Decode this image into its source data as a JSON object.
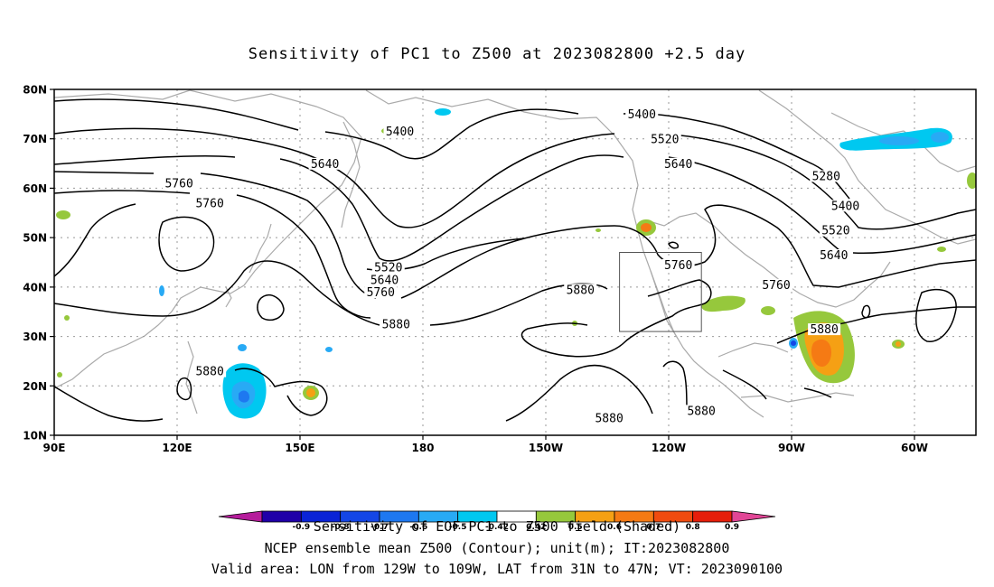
{
  "title": "Sensitivity of PC1 to Z500 at 2023082800 +2.5 day",
  "lat_labels": [
    "80N",
    "70N",
    "60N",
    "50N",
    "40N",
    "30N",
    "20N",
    "10N"
  ],
  "lon_labels": [
    "90E",
    "120E",
    "150E",
    "180",
    "150W",
    "120W",
    "90W",
    "60W"
  ],
  "contour_labels": [
    {
      "text": "5400",
      "lon": 180.0,
      "lat": 71.0
    },
    {
      "text": "5400",
      "lon": 243.0,
      "lat": 74.5
    },
    {
      "text": "5520",
      "lon": 249.0,
      "lat": 69.5
    },
    {
      "text": "5640",
      "lon": 160.5,
      "lat": 64.5
    },
    {
      "text": "5640",
      "lon": 252.5,
      "lat": 64.5
    },
    {
      "text": "5760",
      "lon": 122.5,
      "lat": 60.5
    },
    {
      "text": "5760",
      "lon": 130.5,
      "lat": 56.5
    },
    {
      "text": "5280",
      "lon": 291.0,
      "lat": 62.0
    },
    {
      "text": "5400",
      "lon": 296.0,
      "lat": 56.0
    },
    {
      "text": "5520",
      "lon": 293.5,
      "lat": 51.0
    },
    {
      "text": "5640",
      "lon": 293.0,
      "lat": 46.0
    },
    {
      "text": "5760",
      "lon": 278.0,
      "lat": 40.0
    },
    {
      "text": "5520",
      "lon": 177.0,
      "lat": 43.5
    },
    {
      "text": "5640",
      "lon": 176.0,
      "lat": 41.0
    },
    {
      "text": "5760",
      "lon": 175.0,
      "lat": 38.5
    },
    {
      "text": "5880",
      "lon": 179.0,
      "lat": 32.0
    },
    {
      "text": "5760",
      "lon": 252.5,
      "lat": 44.0
    },
    {
      "text": "5880",
      "lon": 227.0,
      "lat": 39.0
    },
    {
      "text": "5880",
      "lon": 290.5,
      "lat": 31.0
    },
    {
      "text": "5880",
      "lon": 130.5,
      "lat": 22.5
    },
    {
      "text": "5880",
      "lon": 258.5,
      "lat": 14.5
    },
    {
      "text": "5880",
      "lon": 234.5,
      "lat": 13.0
    }
  ],
  "colorbar": {
    "tick_labels": [
      "-0.9",
      "-0.8",
      "-0.7",
      "-0.6",
      "-0.5",
      "-0.42",
      "0.42",
      "0.5",
      "0.6",
      "0.7",
      "0.8",
      "0.9"
    ],
    "colors": [
      "#b51c9b",
      "#1f00a8",
      "#0a23d6",
      "#1446e6",
      "#1e78f0",
      "#28aaf5",
      "#00c8f0",
      "#ffffff",
      "#96c83c",
      "#f5a014",
      "#f57a14",
      "#f04b0f",
      "#e61e0a",
      "#e14696"
    ]
  },
  "captions": {
    "line1": "Sensitivity of EOF PC1 to Z500 field (Shaded)",
    "line2": "NCEP ensemble mean Z500 (Contour); unit(m); IT:2023082800",
    "line3": "Valid area: LON from 129W to 109W, LAT from 31N to 47N; VT: 2023090100"
  },
  "valid_area": {
    "lon_min": -129,
    "lon_max": -109,
    "lat_min": 31,
    "lat_max": 47
  },
  "colors": {
    "contour": "#000000",
    "coastline": "#aaaaaa",
    "grid": "#999999"
  }
}
